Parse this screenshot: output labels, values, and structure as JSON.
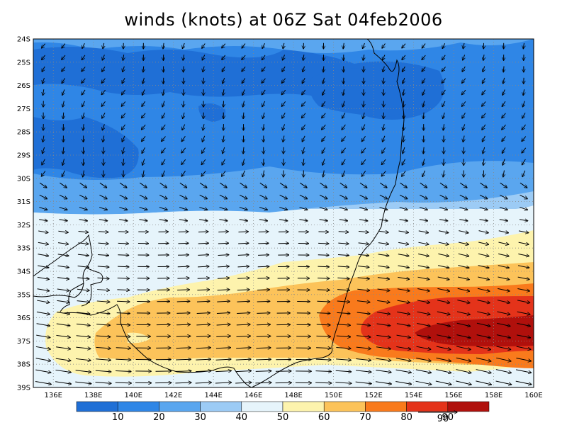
{
  "title": "winds (knots) at 06Z Sat 04feb2006",
  "map": {
    "lon_range": [
      135,
      160
    ],
    "lat_range": [
      -39,
      -24
    ],
    "lon_ticks": [
      "136E",
      "138E",
      "140E",
      "142E",
      "144E",
      "146E",
      "148E",
      "150E",
      "152E",
      "154E",
      "156E",
      "158E",
      "160E"
    ],
    "lat_ticks": [
      "24S",
      "25S",
      "26S",
      "27S",
      "28S",
      "29S",
      "30S",
      "31S",
      "32S",
      "33S",
      "34S",
      "35S",
      "36S",
      "37S",
      "38S",
      "39S"
    ],
    "grid": "dotted"
  },
  "colorbar": {
    "labels": [
      "10",
      "20",
      "30",
      "40",
      "50",
      "60",
      "70",
      "80",
      "90"
    ],
    "colors": [
      "#1f6fd6",
      "#2f86e6",
      "#5aa6ef",
      "#9ccbf5",
      "#e6f4fb",
      "#fdf3ad",
      "#fcc35a",
      "#f97a1c",
      "#e4331a",
      "#b0100c"
    ]
  },
  "vector_key": {
    "label": "90"
  },
  "wind_field": {
    "units": "knots",
    "regions": [
      {
        "name": "strong-westerly-core",
        "center": [
          "157E",
          "36.5S"
        ],
        "speed_range": "80-90+"
      },
      {
        "name": "weak-northeast-flow",
        "center": [
          "145E",
          "26.5S"
        ],
        "speed_range": "<20"
      }
    ]
  }
}
